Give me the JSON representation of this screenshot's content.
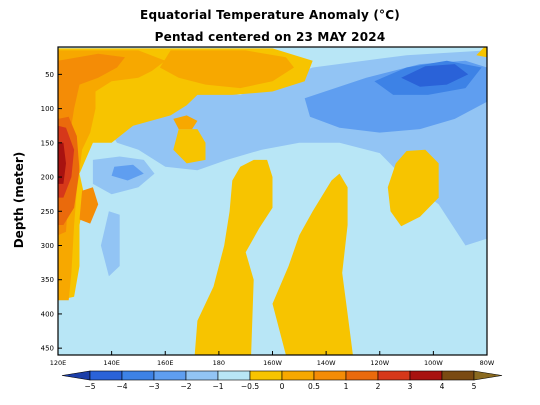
{
  "chart_data": {
    "type": "heatmap",
    "title": "Equatorial Temperature Anomaly (°C)",
    "subtitle": "Pentad centered on 23 MAY 2024",
    "ylabel": "Depth (meter)",
    "xlabel": "",
    "x_ticks": [
      "120E",
      "140E",
      "160E",
      "180",
      "160W",
      "140W",
      "120W",
      "100W",
      "80W"
    ],
    "x_tick_lons": [
      120,
      140,
      160,
      180,
      200,
      220,
      240,
      260,
      280
    ],
    "xlim": [
      120,
      280
    ],
    "y_ticks": [
      50,
      100,
      150,
      200,
      250,
      300,
      350,
      400,
      450
    ],
    "ylim": [
      10,
      460
    ],
    "colorbar": {
      "levels": [
        -5,
        -4,
        -3,
        -2,
        -1,
        -0.5,
        0,
        0.5,
        1,
        2,
        3,
        4,
        5
      ],
      "level_labels": [
        "−5",
        "−4",
        "−3",
        "−2",
        "−1",
        "−0.5",
        "0",
        "0.5",
        "1",
        "2",
        "3",
        "4",
        "5"
      ],
      "colors": [
        "#1c3ea8",
        "#2a62d8",
        "#3d82e6",
        "#5f9ef0",
        "#92c4f4",
        "#b8e6f6",
        "#f7c400",
        "#f7a800",
        "#f48c06",
        "#ea6a0c",
        "#d6381a",
        "#a81210",
        "#7a4a12",
        "#8a6a20"
      ]
    },
    "regions": [
      {
        "class": "near zero negative",
        "color": "#b8e6f6",
        "coords": [
          [
            120,
            10
          ],
          [
            280,
            10
          ],
          [
            280,
            460
          ],
          [
            120,
            460
          ]
        ]
      },
      {
        "class": "-1 to -0.5",
        "color": "#92c4f4",
        "coords": [
          [
            188,
            80
          ],
          [
            215,
            40
          ],
          [
            250,
            22
          ],
          [
            280,
            15
          ],
          [
            280,
            290
          ],
          [
            272,
            300
          ],
          [
            262,
            240
          ],
          [
            250,
            205
          ],
          [
            240,
            165
          ],
          [
            225,
            150
          ],
          [
            210,
            150
          ],
          [
            196,
            160
          ],
          [
            183,
            175
          ],
          [
            172,
            190
          ],
          [
            160,
            185
          ],
          [
            150,
            160
          ],
          [
            142,
            150
          ],
          [
            138,
            125
          ],
          [
            145,
            95
          ],
          [
            160,
            80
          ],
          [
            175,
            75
          ]
        ]
      },
      {
        "class": "-1 to -0.5",
        "color": "#92c4f4",
        "coords": [
          [
            133,
            175
          ],
          [
            143,
            170
          ],
          [
            152,
            175
          ],
          [
            156,
            195
          ],
          [
            150,
            215
          ],
          [
            140,
            225
          ],
          [
            133,
            210
          ]
        ]
      },
      {
        "class": "-1 to -0.5",
        "color": "#92c4f4",
        "coords": [
          [
            123,
            50
          ],
          [
            130,
            45
          ],
          [
            136,
            60
          ],
          [
            132,
            80
          ],
          [
            125,
            85
          ]
        ]
      },
      {
        "class": "-1 to -0.5",
        "color": "#92c4f4",
        "coords": [
          [
            139,
            250
          ],
          [
            143,
            255
          ],
          [
            143,
            330
          ],
          [
            139,
            345
          ],
          [
            136,
            300
          ]
        ]
      },
      {
        "class": "-2 to -1",
        "color": "#5f9ef0",
        "coords": [
          [
            212,
            85
          ],
          [
            235,
            55
          ],
          [
            255,
            35
          ],
          [
            272,
            30
          ],
          [
            280,
            40
          ],
          [
            280,
            90
          ],
          [
            268,
            115
          ],
          [
            255,
            130
          ],
          [
            240,
            135
          ],
          [
            225,
            128
          ],
          [
            214,
            112
          ]
        ]
      },
      {
        "class": "-2 to -1",
        "color": "#5f9ef0",
        "coords": [
          [
            141,
            185
          ],
          [
            148,
            182
          ],
          [
            152,
            195
          ],
          [
            146,
            205
          ],
          [
            140,
            198
          ]
        ]
      },
      {
        "class": "-3 to -2",
        "color": "#3d82e6",
        "coords": [
          [
            238,
            60
          ],
          [
            250,
            40
          ],
          [
            265,
            30
          ],
          [
            278,
            40
          ],
          [
            272,
            70
          ],
          [
            258,
            80
          ],
          [
            245,
            80
          ]
        ]
      },
      {
        "class": "-4 to -3",
        "color": "#2a62d8",
        "coords": [
          [
            248,
            55
          ],
          [
            257,
            38
          ],
          [
            268,
            35
          ],
          [
            273,
            50
          ],
          [
            265,
            65
          ],
          [
            255,
            68
          ]
        ]
      },
      {
        "class": "0 to 0.5",
        "color": "#f7c400",
        "coords": [
          [
            120,
            12
          ],
          [
            200,
            12
          ],
          [
            215,
            30
          ],
          [
            212,
            60
          ],
          [
            200,
            75
          ],
          [
            185,
            80
          ],
          [
            172,
            80
          ],
          [
            168,
            95
          ],
          [
            162,
            110
          ],
          [
            148,
            125
          ],
          [
            140,
            150
          ],
          [
            133,
            150
          ],
          [
            128,
            195
          ],
          [
            130,
            230
          ],
          [
            128,
            270
          ],
          [
            128,
            330
          ],
          [
            126,
            375
          ],
          [
            120,
            380
          ]
        ]
      },
      {
        "class": "0 to 0.5",
        "color": "#f7c400",
        "coords": [
          [
            165,
            130
          ],
          [
            172,
            130
          ],
          [
            175,
            150
          ],
          [
            175,
            175
          ],
          [
            168,
            180
          ],
          [
            163,
            160
          ]
        ]
      },
      {
        "class": "0 to 0.5",
        "color": "#f7c400",
        "coords": [
          [
            185,
            205
          ],
          [
            188,
            185
          ],
          [
            193,
            175
          ],
          [
            198,
            175
          ],
          [
            200,
            200
          ],
          [
            200,
            245
          ],
          [
            195,
            275
          ],
          [
            190,
            310
          ],
          [
            193,
            350
          ],
          [
            192,
            460
          ],
          [
            171,
            460
          ],
          [
            172,
            410
          ],
          [
            178,
            360
          ],
          [
            182,
            300
          ],
          [
            184,
            250
          ]
        ]
      },
      {
        "class": "0 to 0.5",
        "color": "#f7c400",
        "coords": [
          [
            200,
            385
          ],
          [
            206,
            330
          ],
          [
            210,
            285
          ],
          [
            215,
            250
          ],
          [
            222,
            205
          ],
          [
            225,
            195
          ],
          [
            228,
            215
          ],
          [
            228,
            270
          ],
          [
            226,
            340
          ],
          [
            228,
            400
          ],
          [
            230,
            460
          ],
          [
            205,
            460
          ]
        ]
      },
      {
        "class": "0 to 0.5",
        "color": "#f7c400",
        "coords": [
          [
            243,
            215
          ],
          [
            246,
            180
          ],
          [
            250,
            162
          ],
          [
            257,
            160
          ],
          [
            262,
            180
          ],
          [
            262,
            230
          ],
          [
            255,
            258
          ],
          [
            248,
            272
          ],
          [
            244,
            250
          ]
        ]
      },
      {
        "class": "0 to 0.5",
        "color": "#f7c400",
        "coords": [
          [
            279,
            10
          ],
          [
            280,
            10
          ],
          [
            280,
            25
          ],
          [
            276,
            22
          ]
        ]
      },
      {
        "class": "0.5 to 1",
        "color": "#f7a800",
        "coords": [
          [
            120,
            15
          ],
          [
            150,
            15
          ],
          [
            160,
            30
          ],
          [
            155,
            45
          ],
          [
            150,
            55
          ],
          [
            140,
            60
          ],
          [
            134,
            75
          ],
          [
            134,
            100
          ],
          [
            132,
            135
          ],
          [
            129,
            160
          ],
          [
            127,
            220
          ],
          [
            126,
            270
          ],
          [
            125,
            340
          ],
          [
            124,
            380
          ],
          [
            120,
            380
          ]
        ]
      },
      {
        "class": "0.5 to 1",
        "color": "#f7a800",
        "coords": [
          [
            162,
            15
          ],
          [
            190,
            15
          ],
          [
            205,
            25
          ],
          [
            208,
            40
          ],
          [
            200,
            60
          ],
          [
            188,
            70
          ],
          [
            175,
            65
          ],
          [
            165,
            55
          ],
          [
            158,
            40
          ]
        ]
      },
      {
        "class": "0.5 to 1",
        "color": "#f7a800",
        "coords": [
          [
            163,
            115
          ],
          [
            168,
            110
          ],
          [
            172,
            118
          ],
          [
            170,
            130
          ],
          [
            165,
            130
          ]
        ]
      },
      {
        "class": "1 to 2",
        "color": "#f48c06",
        "coords": [
          [
            120,
            30
          ],
          [
            135,
            20
          ],
          [
            145,
            25
          ],
          [
            142,
            40
          ],
          [
            135,
            55
          ],
          [
            128,
            65
          ],
          [
            126,
            100
          ],
          [
            124,
            150
          ],
          [
            124,
            220
          ],
          [
            123,
            280
          ],
          [
            120,
            285
          ]
        ]
      },
      {
        "class": "1 to 2",
        "color": "#f48c06",
        "coords": [
          [
            129,
            220
          ],
          [
            133,
            215
          ],
          [
            135,
            240
          ],
          [
            132,
            268
          ],
          [
            128,
            262
          ]
        ]
      },
      {
        "class": "2 to 3",
        "color": "#ea6a0c",
        "coords": [
          [
            120,
            115
          ],
          [
            124,
            112
          ],
          [
            127,
            140
          ],
          [
            128,
            190
          ],
          [
            126,
            245
          ],
          [
            122,
            270
          ],
          [
            120,
            270
          ]
        ]
      },
      {
        "class": "3 to 4",
        "color": "#d6381a",
        "coords": [
          [
            120,
            125
          ],
          [
            123,
            128
          ],
          [
            126,
            160
          ],
          [
            125,
            200
          ],
          [
            122,
            230
          ],
          [
            120,
            230
          ]
        ]
      },
      {
        "class": "4 to 5",
        "color": "#a81210",
        "coords": [
          [
            120,
            150
          ],
          [
            122,
            150
          ],
          [
            123,
            180
          ],
          [
            122,
            210
          ],
          [
            120,
            210
          ]
        ]
      }
    ]
  }
}
